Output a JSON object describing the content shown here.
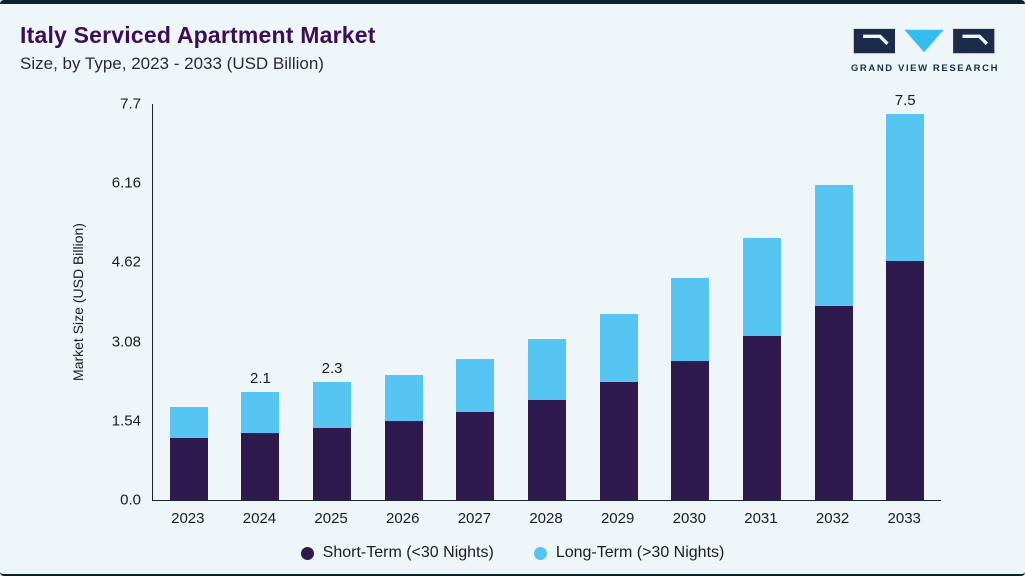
{
  "header": {
    "title": "Italy Serviced Apartment Market",
    "subtitle": "Size, by Type, 2023 - 2033 (USD Billion)",
    "logo_text": "GRAND VIEW RESEARCH"
  },
  "chart_data": {
    "type": "bar",
    "stacked": true,
    "title": "Italy Serviced Apartment Market Size, by Type, 2023 - 2033 (USD Billion)",
    "categories": [
      "2023",
      "2024",
      "2025",
      "2026",
      "2027",
      "2028",
      "2029",
      "2030",
      "2031",
      "2032",
      "2033"
    ],
    "series": [
      {
        "name": "Short-Term (<30 Nights)",
        "color": "#2e1a4e",
        "values": [
          1.2,
          1.3,
          1.4,
          1.54,
          1.72,
          1.95,
          2.3,
          2.7,
          3.18,
          3.78,
          4.65
        ]
      },
      {
        "name": "Long-Term (>30 Nights)",
        "color": "#56c5f1",
        "values": [
          0.6,
          0.8,
          0.9,
          0.9,
          1.03,
          1.18,
          1.32,
          1.62,
          1.92,
          2.35,
          2.85
        ]
      }
    ],
    "bar_total_labels": [
      "",
      "2.1",
      "2.3",
      "",
      "",
      "",
      "",
      "",
      "",
      "",
      "7.5"
    ],
    "ylabel": "Market Size (USD Billion)",
    "yticks": [
      7.7,
      6.16,
      4.62,
      3.08,
      1.54,
      0.0
    ],
    "ytick_labels": [
      "7.7",
      "6.16",
      "4.62",
      "3.08",
      "1.54",
      "0.0"
    ],
    "ylim": [
      0,
      7.7
    ],
    "grid": false,
    "legend_position": "bottom"
  },
  "colors": {
    "background": "#eef6fa",
    "frame": "#0c2233",
    "title": "#3c0e56",
    "short_term": "#2e1a4e",
    "long_term": "#56c5f1",
    "axis": "#1a2430"
  }
}
